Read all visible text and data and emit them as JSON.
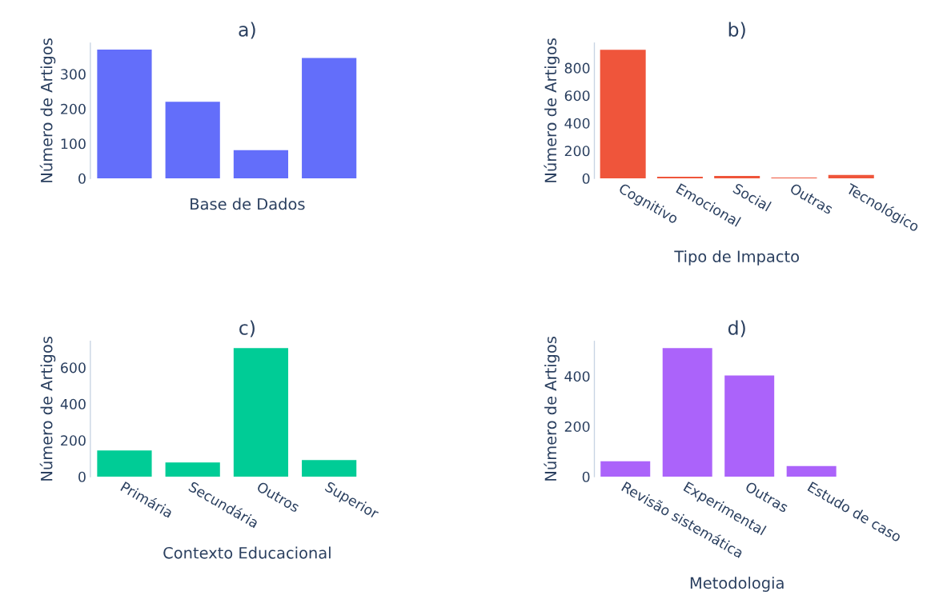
{
  "chart_data": [
    {
      "type": "bar",
      "title": "a)",
      "xlabel": "Base de Dados",
      "ylabel": "Número de Artigos",
      "categories": [
        null,
        null,
        null,
        null
      ],
      "values": [
        370,
        220,
        81,
        346
      ],
      "color": "#636efa",
      "ylim": [
        0,
        389
      ],
      "yticks": [
        0,
        100,
        200,
        300
      ],
      "grid": false
    },
    {
      "type": "bar",
      "title": "b)",
      "xlabel": "Tipo de Impacto",
      "ylabel": "Número de Artigos",
      "categories": [
        "Cognitivo",
        "Emocional",
        "Social",
        "Outras",
        "Tecnológico"
      ],
      "values": [
        931,
        12,
        17,
        6,
        25
      ],
      "color": "#ef553b",
      "ylim": [
        0,
        980
      ],
      "yticks": [
        0,
        200,
        400,
        600,
        800
      ],
      "grid": false
    },
    {
      "type": "bar",
      "title": "c)",
      "xlabel": "Contexto Educacional",
      "ylabel": "Número de Artigos",
      "categories": [
        "Primária",
        "Secundária",
        "Outros",
        "Superior"
      ],
      "values": [
        144,
        78,
        707,
        91
      ],
      "color": "#00cc96",
      "ylim": [
        0,
        744
      ],
      "yticks": [
        0,
        200,
        400,
        600
      ],
      "grid": false
    },
    {
      "type": "bar",
      "title": "d)",
      "xlabel": "Metodologia",
      "ylabel": "Número de Artigos",
      "categories": [
        "Revisão sistemática",
        "Experimental",
        "Outras",
        "Estudo de caso"
      ],
      "values": [
        61,
        512,
        403,
        42
      ],
      "color": "#ab63fa",
      "ylim": [
        0,
        539
      ],
      "yticks": [
        0,
        200,
        400
      ],
      "grid": false
    }
  ]
}
